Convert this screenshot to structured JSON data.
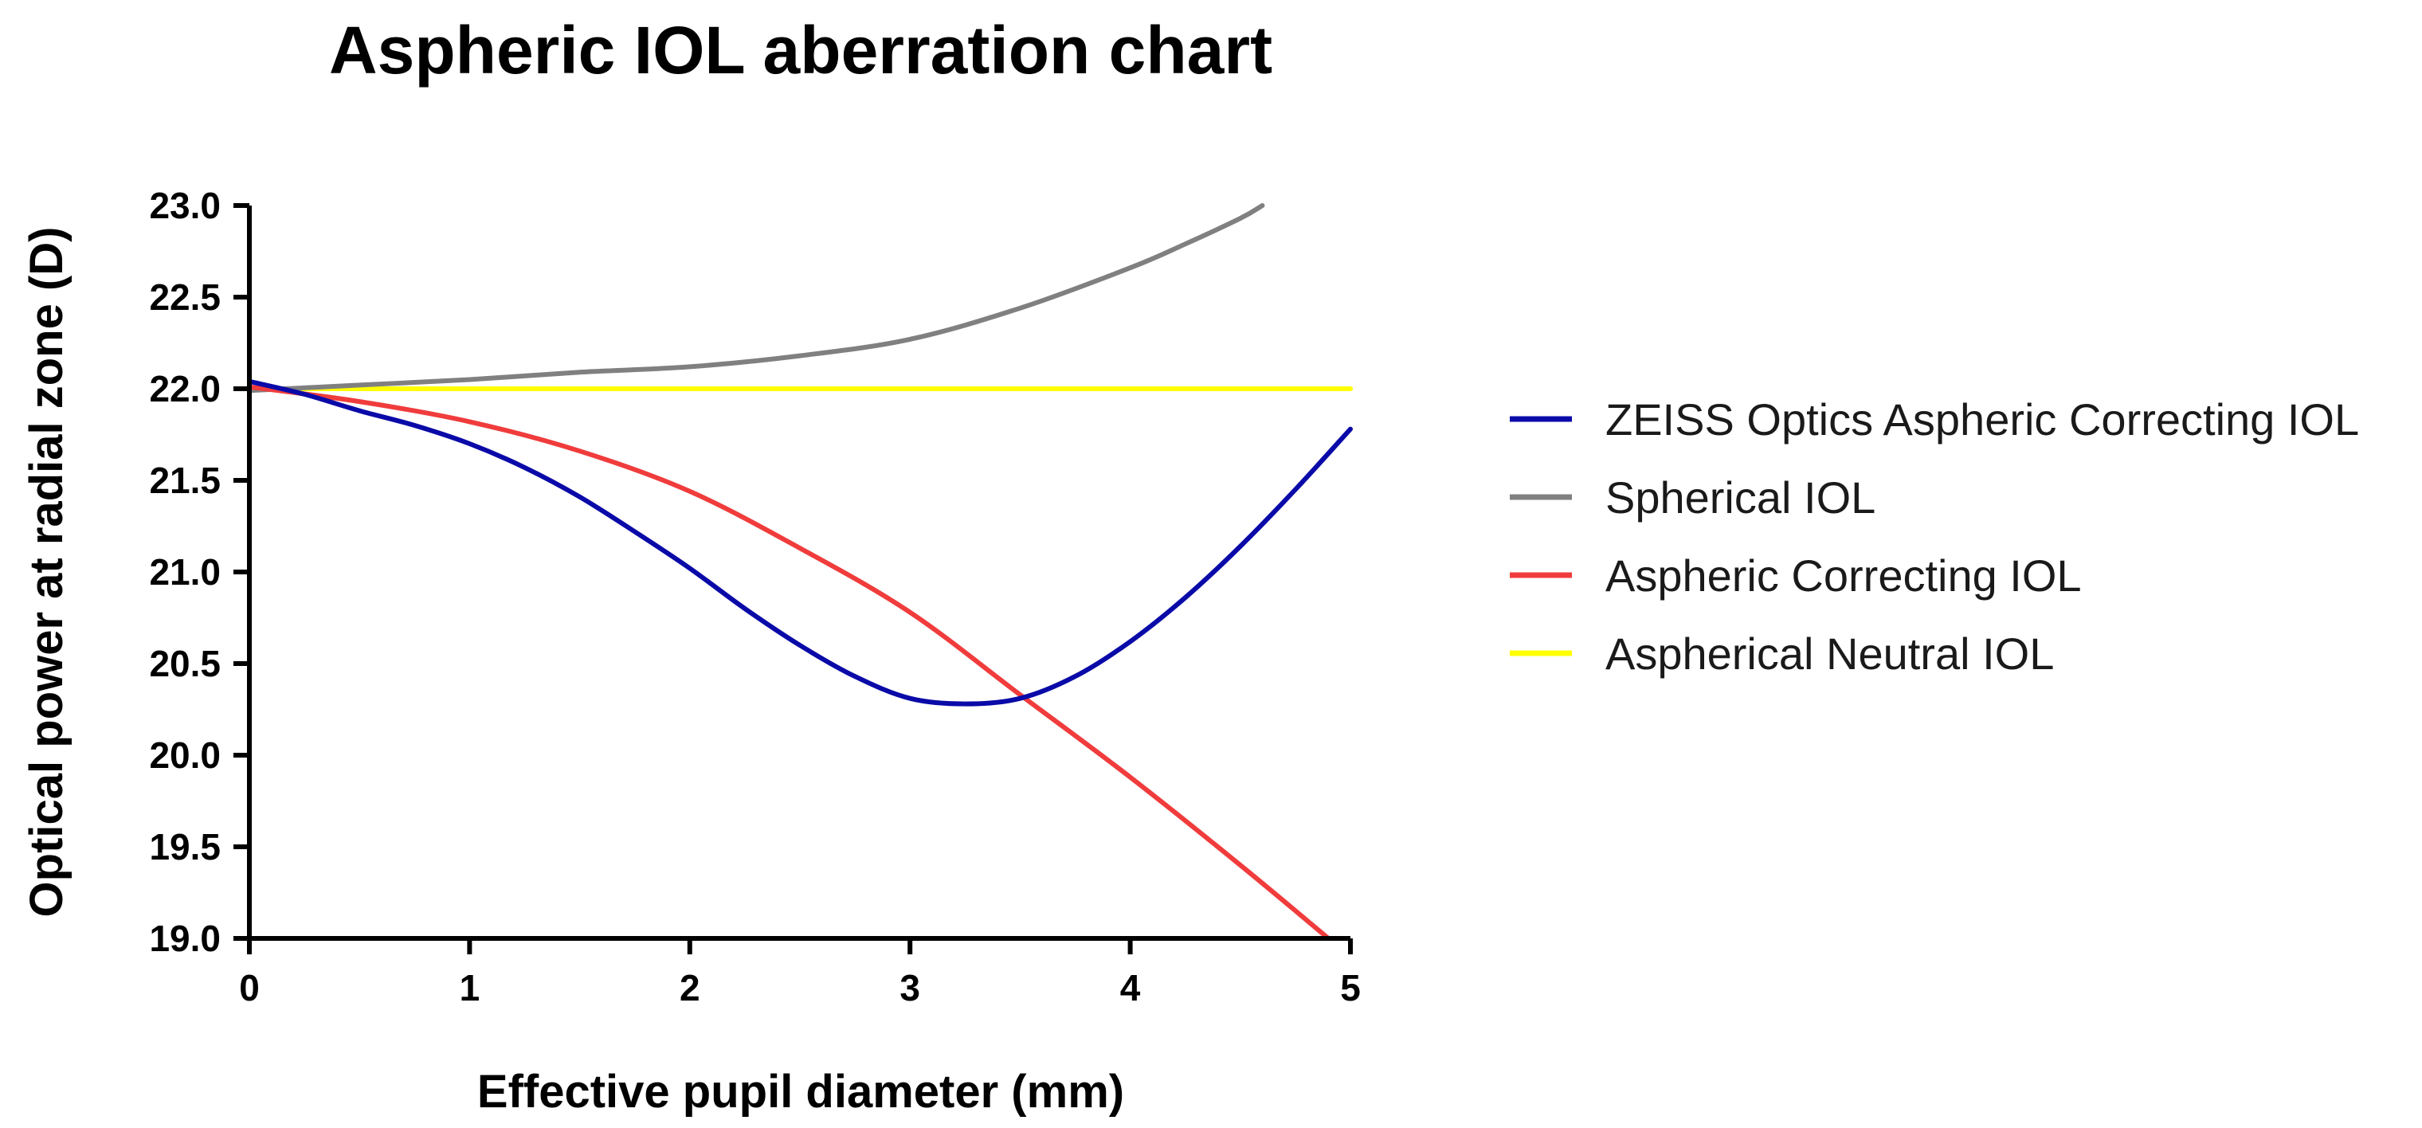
{
  "chart_data": {
    "type": "line",
    "title": "Aspheric IOL aberration chart",
    "xlabel": "Effective pupil diameter (mm)",
    "ylabel": "Optical power at radial zone (D)",
    "xlim": [
      0,
      5
    ],
    "ylim": [
      19.0,
      23.0
    ],
    "xticks": [
      0,
      1,
      2,
      3,
      4,
      5
    ],
    "xtick_labels": [
      "0",
      "1",
      "2",
      "3",
      "4",
      "5"
    ],
    "yticks": [
      19.0,
      19.5,
      20.0,
      20.5,
      21.0,
      21.5,
      22.0,
      22.5,
      23.0
    ],
    "ytick_labels": [
      "19.0",
      "19.5",
      "20.0",
      "20.5",
      "21.0",
      "21.5",
      "22.0",
      "22.5",
      "23.0"
    ],
    "grid": false,
    "legend_position": "right",
    "series": [
      {
        "name": "ZEISS Optics Aspheric Correcting IOL",
        "color": "#0a0aa8",
        "x": [
          0,
          0.25,
          0.5,
          0.75,
          1.0,
          1.25,
          1.5,
          1.75,
          2.0,
          2.25,
          2.5,
          2.75,
          3.0,
          3.25,
          3.5,
          3.75,
          4.0,
          4.25,
          4.5,
          4.75,
          5.0
        ],
        "y": [
          22.04,
          21.97,
          21.88,
          21.8,
          21.7,
          21.57,
          21.41,
          21.22,
          21.02,
          20.8,
          20.6,
          20.43,
          20.31,
          20.28,
          20.31,
          20.43,
          20.62,
          20.86,
          21.14,
          21.45,
          21.78
        ]
      },
      {
        "name": "Spherical IOL",
        "color": "#808080",
        "x": [
          0,
          0.5,
          1.0,
          1.5,
          2.0,
          2.5,
          3.0,
          3.5,
          4.0,
          4.25,
          4.5,
          4.6
        ],
        "y": [
          21.99,
          22.02,
          22.05,
          22.09,
          22.12,
          22.18,
          22.27,
          22.44,
          22.66,
          22.79,
          22.93,
          23.0
        ]
      },
      {
        "name": "Aspheric Correcting IOL",
        "color": "#f03c3c",
        "x": [
          0,
          0.5,
          1.0,
          1.5,
          2.0,
          2.5,
          3.0,
          3.5,
          4.0,
          4.5,
          4.9
        ],
        "y": [
          22.01,
          21.93,
          21.82,
          21.66,
          21.44,
          21.13,
          20.78,
          20.33,
          19.88,
          19.4,
          19.0
        ]
      },
      {
        "name": "Aspherical Neutral IOL",
        "color": "#ffff00",
        "x": [
          0,
          5.0
        ],
        "y": [
          22.0,
          22.0
        ]
      }
    ]
  }
}
